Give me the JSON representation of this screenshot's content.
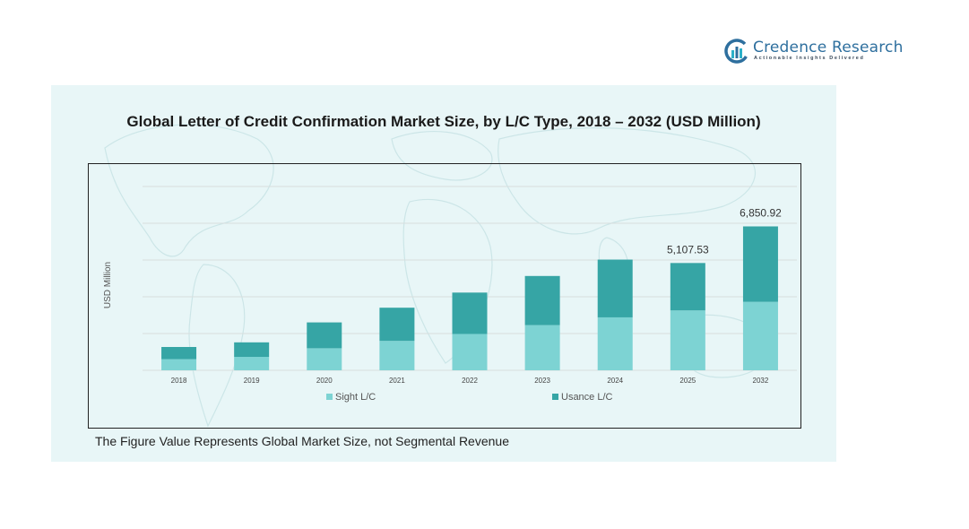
{
  "logo": {
    "name": "Credence Research",
    "tagline": "Actionable Insights Delivered"
  },
  "colors": {
    "sight": "#7dd3d3",
    "usance": "#36a5a5",
    "panel": "#e8f6f7",
    "brand": "#2e6f9e"
  },
  "chart_data": {
    "type": "bar",
    "stacked": true,
    "title": "Global Letter of Credit Confirmation Market Size, by L/C Type, 2018 – 2032 (USD Million)",
    "ylabel": "USD Million",
    "xlabel": "",
    "categories": [
      "2018",
      "2019",
      "2020",
      "2021",
      "2022",
      "2023",
      "2024",
      "2025",
      "2032"
    ],
    "series": [
      {
        "name": "Sight L/C",
        "values": [
          530,
          640,
          1050,
          1400,
          1730,
          2150,
          2520,
          2850,
          3260
        ]
      },
      {
        "name": "Usance L/C",
        "values": [
          580,
          690,
          1230,
          1580,
          1970,
          2340,
          2750,
          2257.53,
          3590.92
        ]
      }
    ],
    "totals_labeled": {
      "2025": "5,107.53",
      "2032": "6,850.92"
    },
    "ylim": [
      0,
      8750
    ],
    "grid": true,
    "legend": "bottom"
  },
  "footnote": "The Figure Value Represents Global Market Size, not Segmental Revenue"
}
